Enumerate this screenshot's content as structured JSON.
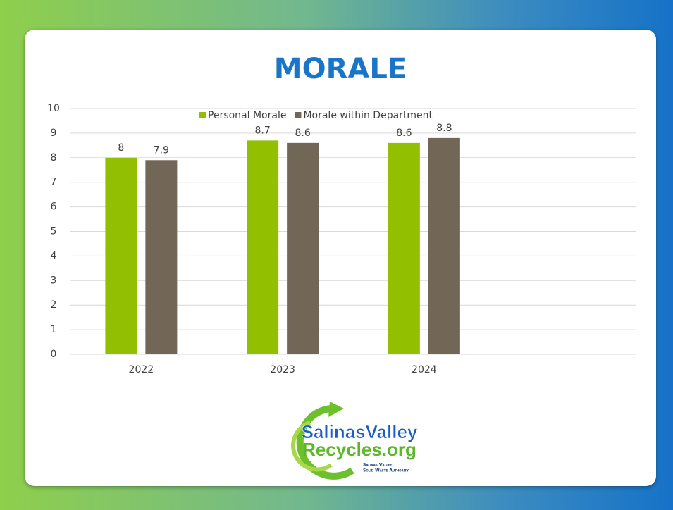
{
  "chart_data": {
    "type": "bar",
    "title": "MORALE",
    "categories": [
      "2022",
      "2023",
      "2024",
      null
    ],
    "series": [
      {
        "name": "Personal Morale",
        "color": "#92c000",
        "values": [
          8,
          8.7,
          8.6,
          null
        ]
      },
      {
        "name": "Morale within Department",
        "color": "#726656",
        "values": [
          7.9,
          8.6,
          8.8,
          null
        ]
      }
    ],
    "ylim": [
      0,
      10
    ],
    "yticks": [
      0,
      1,
      2,
      3,
      4,
      5,
      6,
      7,
      8,
      9,
      10
    ],
    "grid": true,
    "legend": "top"
  },
  "logo": {
    "line1": "SalinasValley",
    "line2": "Recycles.org",
    "tagline1": "Salinas Valley",
    "tagline2": "Solid Waste Authority"
  }
}
